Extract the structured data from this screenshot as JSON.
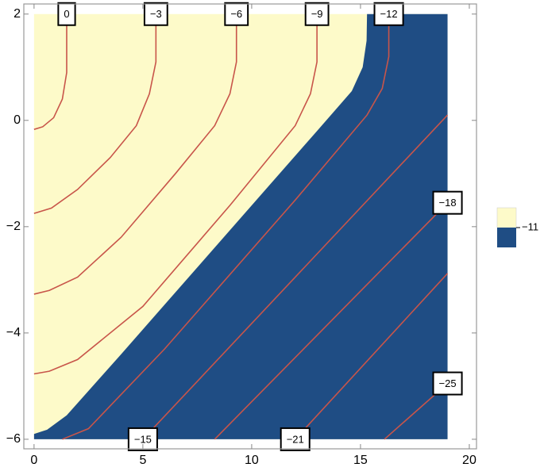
{
  "chart_data": {
    "type": "contour",
    "xlim": [
      -0.47,
      20.33
    ],
    "ylim": [
      -6.18,
      2.19
    ],
    "xticks": [
      0,
      5,
      10,
      15,
      20
    ],
    "yticks": [
      2,
      0,
      {
        "value": -2,
        "label": "−2"
      },
      {
        "value": -4,
        "label": "−4"
      },
      {
        "value": -6,
        "label": "−6"
      }
    ],
    "domain": {
      "x": [
        0,
        19
      ],
      "y": [
        -6,
        2
      ]
    },
    "colors": [
      "#fdfac9",
      "#1f4d84"
    ],
    "line_color": "#c8554a",
    "region": {
      "x": [
        15.3,
        15.28,
        15.1,
        14.6,
        13,
        4,
        1.5,
        0.6,
        0,
        0,
        19,
        19
      ],
      "y": [
        2,
        1.5,
        1.0,
        0.55,
        -0.2,
        -4.4,
        -5.55,
        -5.82,
        -5.9,
        -6,
        -6,
        2
      ]
    },
    "contours": [
      {
        "level": 0,
        "label": "0",
        "x": [
          1.5,
          1.5,
          1.3,
          0.9,
          0.4,
          0
        ],
        "y": [
          2,
          0.9,
          0.4,
          0.05,
          -0.12,
          -0.17
        ]
      },
      {
        "level": -3,
        "label": "−3",
        "x": [
          5.6,
          5.6,
          5.3,
          4.7,
          3.5,
          2,
          0.8,
          0
        ],
        "y": [
          2,
          1.1,
          0.5,
          -0.1,
          -0.7,
          -1.3,
          -1.65,
          -1.75
        ]
      },
      {
        "level": -6,
        "label": "−6",
        "x": [
          9.3,
          9.3,
          9,
          8.3,
          6.5,
          4,
          2,
          0.7,
          0
        ],
        "y": [
          2,
          1.1,
          0.5,
          -0.1,
          -1.0,
          -2.2,
          -2.95,
          -3.2,
          -3.27
        ]
      },
      {
        "level": -9,
        "label": "−9",
        "x": [
          13,
          13,
          12.7,
          12,
          9,
          5,
          2,
          0.7,
          0
        ],
        "y": [
          2,
          1.1,
          0.5,
          -0.1,
          -1.6,
          -3.5,
          -4.5,
          -4.72,
          -4.77
        ]
      },
      {
        "level": -12,
        "label": "−12",
        "x": [
          16.3,
          16.3,
          16,
          15.3,
          12,
          6,
          2.5,
          1.3
        ],
        "y": [
          2,
          1.2,
          0.6,
          0.1,
          -1.5,
          -4.3,
          -5.8,
          -6
        ]
      },
      {
        "level": -15,
        "label": "−15",
        "x": [
          5,
          19
        ],
        "y": [
          -6,
          0.1
        ]
      },
      {
        "level": -18,
        "label": "−18",
        "x": [
          19,
          8.3
        ],
        "y": [
          -1.55,
          -6
        ]
      },
      {
        "level": -21,
        "label": "−21",
        "x": [
          12,
          19
        ],
        "y": [
          -6,
          -2.88
        ]
      },
      {
        "level": -25,
        "label": "−25",
        "x": [
          19,
          16.1
        ],
        "y": [
          -4.95,
          -6
        ]
      }
    ],
    "legend": {
      "label": "−11"
    }
  }
}
